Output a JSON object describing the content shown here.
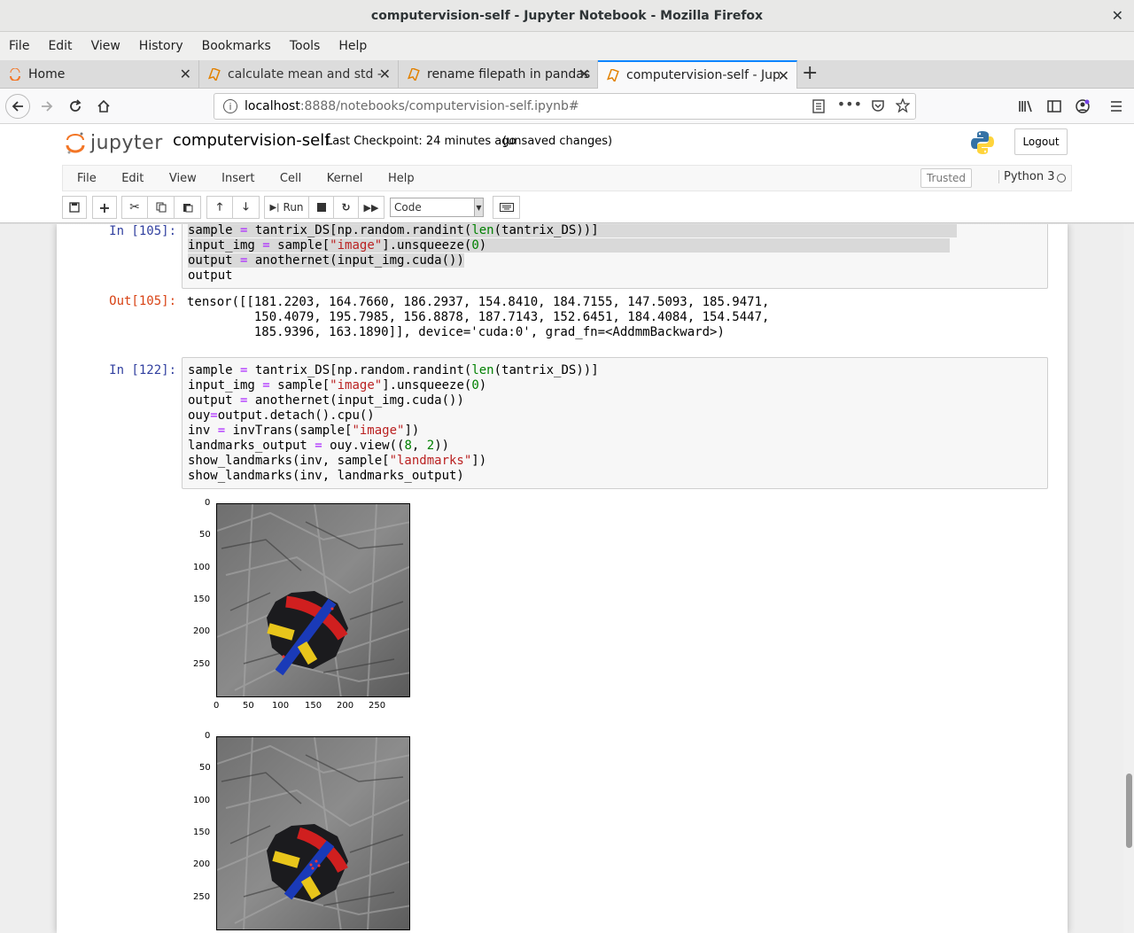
{
  "window": {
    "title": "computervision-self - Jupyter Notebook - Mozilla Firefox"
  },
  "menubar": [
    "File",
    "Edit",
    "View",
    "History",
    "Bookmarks",
    "Tools",
    "Help"
  ],
  "tabs": [
    {
      "label": "Home"
    },
    {
      "label": "calculate mean and std - "
    },
    {
      "label": "rename filepath in pandas"
    },
    {
      "label": "computervision-self - Jup"
    }
  ],
  "url": {
    "host": "localhost",
    "path": ":8888/notebooks/computervision-self.ipynb#"
  },
  "jupyter": {
    "logo_text": "jupyter",
    "notebook_name": "computervision-self",
    "checkpoint": "Last Checkpoint: 24 minutes ago",
    "unsaved": "(unsaved changes)",
    "logout": "Logout",
    "menu": [
      "File",
      "Edit",
      "View",
      "Insert",
      "Cell",
      "Kernel",
      "Help"
    ],
    "trusted": "Trusted",
    "kernel": "Python 3",
    "run_label": "Run",
    "cell_type": "Code"
  },
  "cells": [
    {
      "prompt_in": "In [105]:",
      "prompt_out": "Out[105]:",
      "output": "tensor([[181.2203, 164.7660, 186.2937, 154.8410, 184.7155, 147.5093, 185.9471,\n         150.4079, 195.7985, 156.8878, 187.7143, 152.6451, 184.4084, 154.5447,\n         185.9396, 163.1890]], device='cuda:0', grad_fn=<AddmmBackward>)"
    },
    {
      "prompt_in": "In [122]:"
    }
  ],
  "figures": [
    {
      "yticks": [
        "0",
        "50",
        "100",
        "150",
        "200",
        "250"
      ],
      "xticks": [
        "0",
        "50",
        "100",
        "150",
        "200",
        "250"
      ]
    },
    {
      "yticks": [
        "0",
        "50",
        "100",
        "150",
        "200",
        "250"
      ]
    }
  ]
}
